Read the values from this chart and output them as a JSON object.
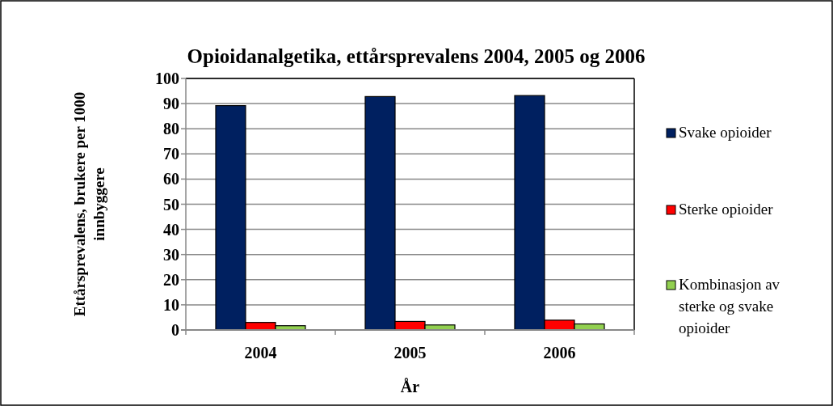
{
  "chart_data": {
    "type": "bar",
    "title": "Opioidanalgetika, ettårsprevalens 2004, 2005 og 2006",
    "xlabel": "År",
    "ylabel": "Ettårsprevalens, brukere per 1000 innbyggere",
    "categories": [
      "2004",
      "2005",
      "2006"
    ],
    "series": [
      {
        "name": "Svake opioider",
        "color": "#002060",
        "values": [
          89.2,
          92.8,
          93.2
        ]
      },
      {
        "name": "Sterke opioider",
        "color": "#ff0000",
        "values": [
          3.0,
          3.4,
          3.9
        ]
      },
      {
        "name": "Kombinasjon av sterke og svake opioider",
        "color": "#92d050",
        "values": [
          1.7,
          2.0,
          2.4
        ]
      }
    ],
    "ylim": [
      0,
      100
    ],
    "yticks": [
      0,
      10,
      20,
      30,
      40,
      50,
      60,
      70,
      80,
      90,
      100
    ],
    "grid": "y",
    "legend": "right"
  }
}
